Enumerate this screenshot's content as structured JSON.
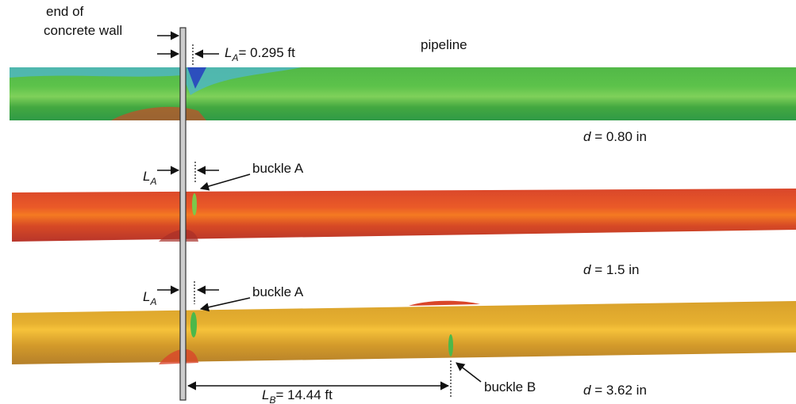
{
  "wall_label": [
    "end of",
    "concrete wall"
  ],
  "pipeline_label": "pipeline",
  "top_offset": {
    "symbol": "L",
    "subscript": "A",
    "text": "= 0.295 ft"
  },
  "panels": [
    {
      "displacement": {
        "symbol": "d",
        "text": "= 0.80 in"
      }
    },
    {
      "offset": {
        "symbol": "L",
        "subscript": "A"
      },
      "buckle": "buckle A",
      "displacement": {
        "symbol": "d",
        "text": "= 1.5 in"
      }
    },
    {
      "offset": {
        "symbol": "L",
        "subscript": "A"
      },
      "buckle": "buckle A",
      "buckle_b": "buckle B",
      "spacing": {
        "symbol": "L",
        "subscript": "B",
        "text": "= 14.44 ft"
      },
      "displacement": {
        "symbol": "d",
        "text": "= 3.62 in"
      }
    }
  ]
}
